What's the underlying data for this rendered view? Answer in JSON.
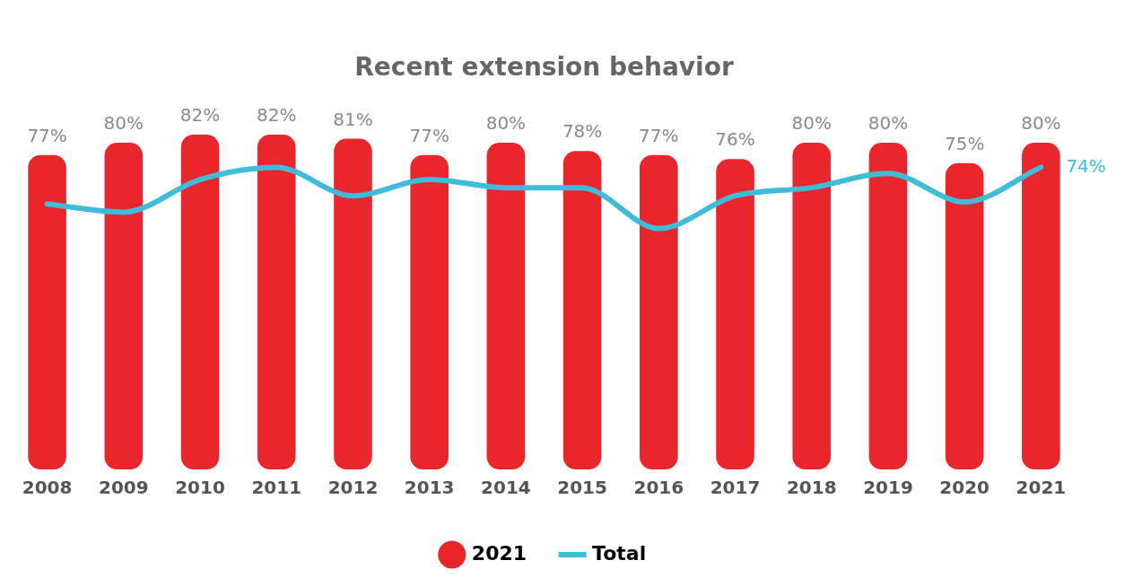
{
  "chart_data": {
    "type": "bar",
    "title": "Recent extension behavior",
    "categories": [
      "2008",
      "2009",
      "2010",
      "2011",
      "2012",
      "2013",
      "2014",
      "2015",
      "2016",
      "2017",
      "2018",
      "2019",
      "2020",
      "2021"
    ],
    "series": [
      {
        "name": "2021",
        "color": "#e8262c",
        "values": [
          77,
          80,
          82,
          82,
          81,
          77,
          80,
          78,
          77,
          76,
          80,
          80,
          75,
          80
        ],
        "value_labels": [
          "77%",
          "80%",
          "82%",
          "82%",
          "81%",
          "77%",
          "80%",
          "78%",
          "77%",
          "76%",
          "80%",
          "80%",
          "75%",
          "80%"
        ]
      },
      {
        "name": "Total",
        "type": "line",
        "color": "#3fbcd8",
        "values": [
          65,
          63,
          71,
          74,
          67,
          71,
          69,
          69,
          59,
          67,
          69,
          72.5,
          65.5,
          74
        ],
        "value_labels": [
          null,
          null,
          null,
          null,
          null,
          null,
          null,
          null,
          null,
          null,
          null,
          null,
          null,
          "74%"
        ]
      }
    ],
    "tick_labels": "x",
    "grid": false,
    "legend": "bottom",
    "marker": "none",
    "line_style": "solid"
  }
}
